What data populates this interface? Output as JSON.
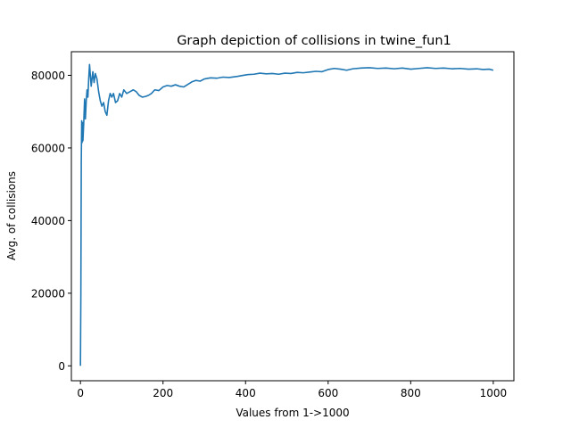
{
  "chart_data": {
    "type": "line",
    "title": "Graph depiction of collisions in twine_fun1",
    "xlabel": "Values from 1->1000",
    "ylabel": "Avg. of collisions",
    "xlim": [
      -22,
      1050
    ],
    "ylim": [
      -4100,
      86500
    ],
    "grid": false,
    "x_ticks": [
      0,
      200,
      400,
      600,
      800,
      1000
    ],
    "y_ticks": [
      0,
      20000,
      40000,
      60000,
      80000
    ],
    "series": [
      {
        "color": "#1f77b4",
        "points": [
          [
            0,
            0
          ],
          [
            1,
            20000
          ],
          [
            2,
            56000
          ],
          [
            3,
            67500
          ],
          [
            4,
            61500
          ],
          [
            5,
            67000
          ],
          [
            6,
            62000
          ],
          [
            8,
            67000
          ],
          [
            10,
            73500
          ],
          [
            12,
            68000
          ],
          [
            14,
            73000
          ],
          [
            16,
            76000
          ],
          [
            18,
            74000
          ],
          [
            20,
            79000
          ],
          [
            22,
            83000
          ],
          [
            24,
            80000
          ],
          [
            26,
            77000
          ],
          [
            28,
            79000
          ],
          [
            30,
            81000
          ],
          [
            33,
            78000
          ],
          [
            36,
            80500
          ],
          [
            40,
            79000
          ],
          [
            44,
            75500
          ],
          [
            48,
            73000
          ],
          [
            52,
            71500
          ],
          [
            56,
            72500
          ],
          [
            60,
            70000
          ],
          [
            64,
            69000
          ],
          [
            68,
            73000
          ],
          [
            72,
            75000
          ],
          [
            76,
            74000
          ],
          [
            80,
            75000
          ],
          [
            85,
            72500
          ],
          [
            90,
            73000
          ],
          [
            95,
            75000
          ],
          [
            100,
            74000
          ],
          [
            105,
            76000
          ],
          [
            112,
            75000
          ],
          [
            120,
            75500
          ],
          [
            128,
            76000
          ],
          [
            135,
            75500
          ],
          [
            142,
            74500
          ],
          [
            150,
            74000
          ],
          [
            158,
            74200
          ],
          [
            165,
            74500
          ],
          [
            172,
            75000
          ],
          [
            180,
            76000
          ],
          [
            190,
            75800
          ],
          [
            200,
            76800
          ],
          [
            210,
            77200
          ],
          [
            220,
            77000
          ],
          [
            230,
            77400
          ],
          [
            240,
            77000
          ],
          [
            250,
            76800
          ],
          [
            260,
            77500
          ],
          [
            270,
            78200
          ],
          [
            280,
            78600
          ],
          [
            290,
            78400
          ],
          [
            300,
            79000
          ],
          [
            315,
            79300
          ],
          [
            330,
            79200
          ],
          [
            345,
            79500
          ],
          [
            360,
            79400
          ],
          [
            380,
            79700
          ],
          [
            395,
            80000
          ],
          [
            405,
            80200
          ],
          [
            420,
            80300
          ],
          [
            435,
            80600
          ],
          [
            450,
            80400
          ],
          [
            465,
            80500
          ],
          [
            480,
            80300
          ],
          [
            495,
            80600
          ],
          [
            510,
            80500
          ],
          [
            525,
            80800
          ],
          [
            540,
            80700
          ],
          [
            555,
            80900
          ],
          [
            570,
            81100
          ],
          [
            585,
            81000
          ],
          [
            600,
            81600
          ],
          [
            615,
            81900
          ],
          [
            630,
            81700
          ],
          [
            645,
            81400
          ],
          [
            660,
            81800
          ],
          [
            680,
            82000
          ],
          [
            700,
            82100
          ],
          [
            720,
            81900
          ],
          [
            740,
            82000
          ],
          [
            760,
            81800
          ],
          [
            780,
            82000
          ],
          [
            800,
            81700
          ],
          [
            820,
            81900
          ],
          [
            840,
            82100
          ],
          [
            860,
            81900
          ],
          [
            880,
            82000
          ],
          [
            900,
            81800
          ],
          [
            920,
            81900
          ],
          [
            940,
            81700
          ],
          [
            960,
            81800
          ],
          [
            975,
            81600
          ],
          [
            990,
            81700
          ],
          [
            1000,
            81400
          ]
        ]
      }
    ]
  }
}
